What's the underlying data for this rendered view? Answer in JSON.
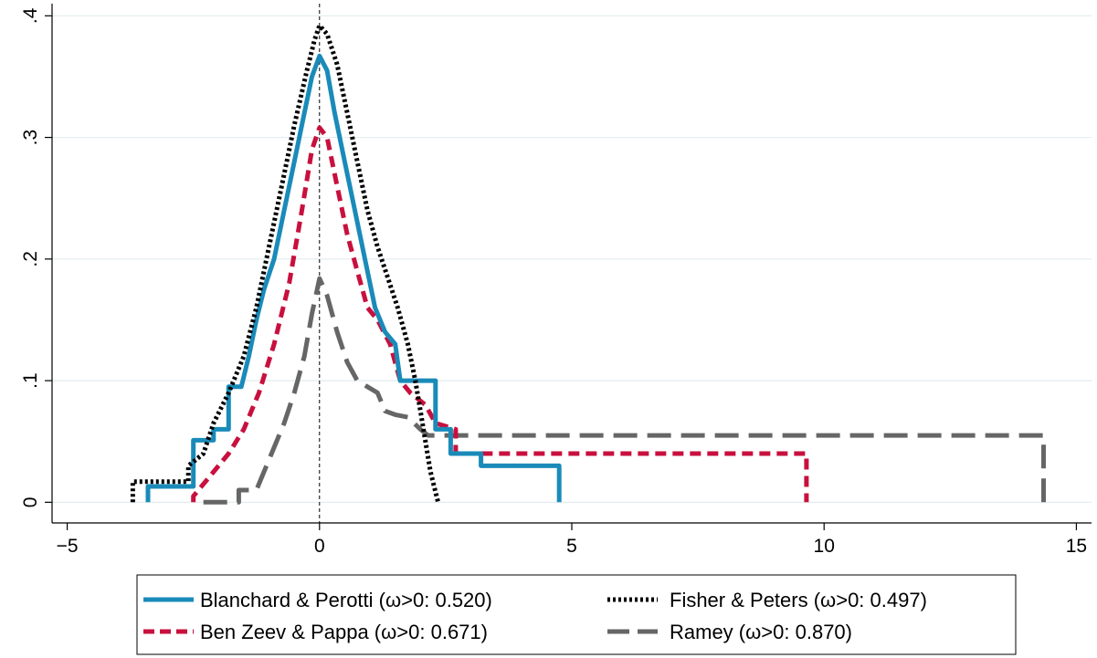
{
  "chart_data": {
    "type": "line",
    "title": "",
    "xlabel": "",
    "ylabel": "",
    "xlim": [
      -5.3,
      15.3
    ],
    "ylim": [
      -0.017,
      0.41
    ],
    "x_ticks": [
      -5,
      0,
      5,
      10,
      15
    ],
    "x_tick_labels": [
      "−5",
      "0",
      "5",
      "10",
      "15"
    ],
    "y_ticks": [
      0,
      0.1,
      0.2,
      0.3,
      0.4
    ],
    "y_tick_labels": [
      "0",
      ".1",
      ".2",
      ".3",
      ".4"
    ],
    "grid": "horizontal",
    "reference_line_x": 0,
    "legend_position": "bottom",
    "series": [
      {
        "name": "Blanchard & Perotti (ω>0: 0.520)",
        "color": "#1a8bb9",
        "style": "solid",
        "points": [
          [
            -3.4,
            0
          ],
          [
            -3.4,
            0.013
          ],
          [
            -2.5,
            0.013
          ],
          [
            -2.5,
            0.051
          ],
          [
            -2.1,
            0.051
          ],
          [
            -2.1,
            0.06
          ],
          [
            -1.8,
            0.06
          ],
          [
            -1.8,
            0.095
          ],
          [
            -1.55,
            0.095
          ],
          [
            -1.4,
            0.12
          ],
          [
            -1.25,
            0.15
          ],
          [
            -1.1,
            0.175
          ],
          [
            -0.9,
            0.2
          ],
          [
            -0.7,
            0.24
          ],
          [
            -0.5,
            0.28
          ],
          [
            -0.3,
            0.32
          ],
          [
            -0.15,
            0.35
          ],
          [
            0,
            0.367
          ],
          [
            0.15,
            0.355
          ],
          [
            0.3,
            0.32
          ],
          [
            0.5,
            0.28
          ],
          [
            0.7,
            0.24
          ],
          [
            0.9,
            0.2
          ],
          [
            1.1,
            0.16
          ],
          [
            1.3,
            0.14
          ],
          [
            1.5,
            0.13
          ],
          [
            1.6,
            0.1
          ],
          [
            2.3,
            0.1
          ],
          [
            2.3,
            0.06
          ],
          [
            2.6,
            0.06
          ],
          [
            2.6,
            0.04
          ],
          [
            3.2,
            0.04
          ],
          [
            3.2,
            0.03
          ],
          [
            4.75,
            0.03
          ],
          [
            4.75,
            0
          ]
        ]
      },
      {
        "name": "Ben Zeev & Pappa (ω>0: 0.671)",
        "color": "#c8103e",
        "style": "dashed",
        "points": [
          [
            -2.5,
            0
          ],
          [
            -2.5,
            0.005
          ],
          [
            -2.2,
            0.02
          ],
          [
            -1.8,
            0.04
          ],
          [
            -1.5,
            0.06
          ],
          [
            -1.2,
            0.09
          ],
          [
            -0.9,
            0.13
          ],
          [
            -0.6,
            0.18
          ],
          [
            -0.35,
            0.24
          ],
          [
            -0.15,
            0.29
          ],
          [
            0,
            0.308
          ],
          [
            0.15,
            0.3
          ],
          [
            0.35,
            0.26
          ],
          [
            0.55,
            0.22
          ],
          [
            0.75,
            0.19
          ],
          [
            0.95,
            0.16
          ],
          [
            1.15,
            0.15
          ],
          [
            1.4,
            0.13
          ],
          [
            1.6,
            0.1
          ],
          [
            1.8,
            0.09
          ],
          [
            2.1,
            0.08
          ],
          [
            2.3,
            0.065
          ],
          [
            2.7,
            0.06
          ],
          [
            2.7,
            0.04
          ],
          [
            9.65,
            0.04
          ],
          [
            9.65,
            0
          ]
        ]
      },
      {
        "name": "Fisher & Peters (ω>0: 0.497)",
        "color": "#000000",
        "style": "dotted",
        "points": [
          [
            -3.7,
            0
          ],
          [
            -3.7,
            0.017
          ],
          [
            -2.6,
            0.017
          ],
          [
            -2.6,
            0.03
          ],
          [
            -2.3,
            0.04
          ],
          [
            -2.1,
            0.065
          ],
          [
            -1.8,
            0.09
          ],
          [
            -1.5,
            0.12
          ],
          [
            -1.25,
            0.16
          ],
          [
            -1.0,
            0.21
          ],
          [
            -0.75,
            0.26
          ],
          [
            -0.5,
            0.31
          ],
          [
            -0.25,
            0.355
          ],
          [
            -0.1,
            0.38
          ],
          [
            0,
            0.392
          ],
          [
            0.15,
            0.385
          ],
          [
            0.35,
            0.36
          ],
          [
            0.55,
            0.32
          ],
          [
            0.75,
            0.28
          ],
          [
            0.95,
            0.24
          ],
          [
            1.15,
            0.21
          ],
          [
            1.35,
            0.185
          ],
          [
            1.55,
            0.16
          ],
          [
            1.75,
            0.13
          ],
          [
            1.9,
            0.1
          ],
          [
            2.0,
            0.075
          ],
          [
            2.1,
            0.05
          ],
          [
            2.2,
            0.025
          ],
          [
            2.35,
            0
          ]
        ]
      },
      {
        "name": "Ramey (ω>0: 0.870)",
        "color": "#666666",
        "style": "longdash",
        "points": [
          [
            -2.3,
            0
          ],
          [
            -1.6,
            0
          ],
          [
            -1.6,
            0.01
          ],
          [
            -1.25,
            0.01
          ],
          [
            -1.1,
            0.025
          ],
          [
            -0.95,
            0.04
          ],
          [
            -0.7,
            0.065
          ],
          [
            -0.5,
            0.09
          ],
          [
            -0.3,
            0.12
          ],
          [
            -0.15,
            0.155
          ],
          [
            0,
            0.184
          ],
          [
            0.15,
            0.17
          ],
          [
            0.35,
            0.14
          ],
          [
            0.55,
            0.115
          ],
          [
            0.75,
            0.1
          ],
          [
            0.95,
            0.095
          ],
          [
            1.15,
            0.09
          ],
          [
            1.3,
            0.075
          ],
          [
            1.5,
            0.072
          ],
          [
            1.75,
            0.07
          ],
          [
            2.0,
            0.06
          ],
          [
            2.15,
            0.055
          ],
          [
            14.35,
            0.055
          ],
          [
            14.35,
            0
          ]
        ]
      }
    ]
  }
}
